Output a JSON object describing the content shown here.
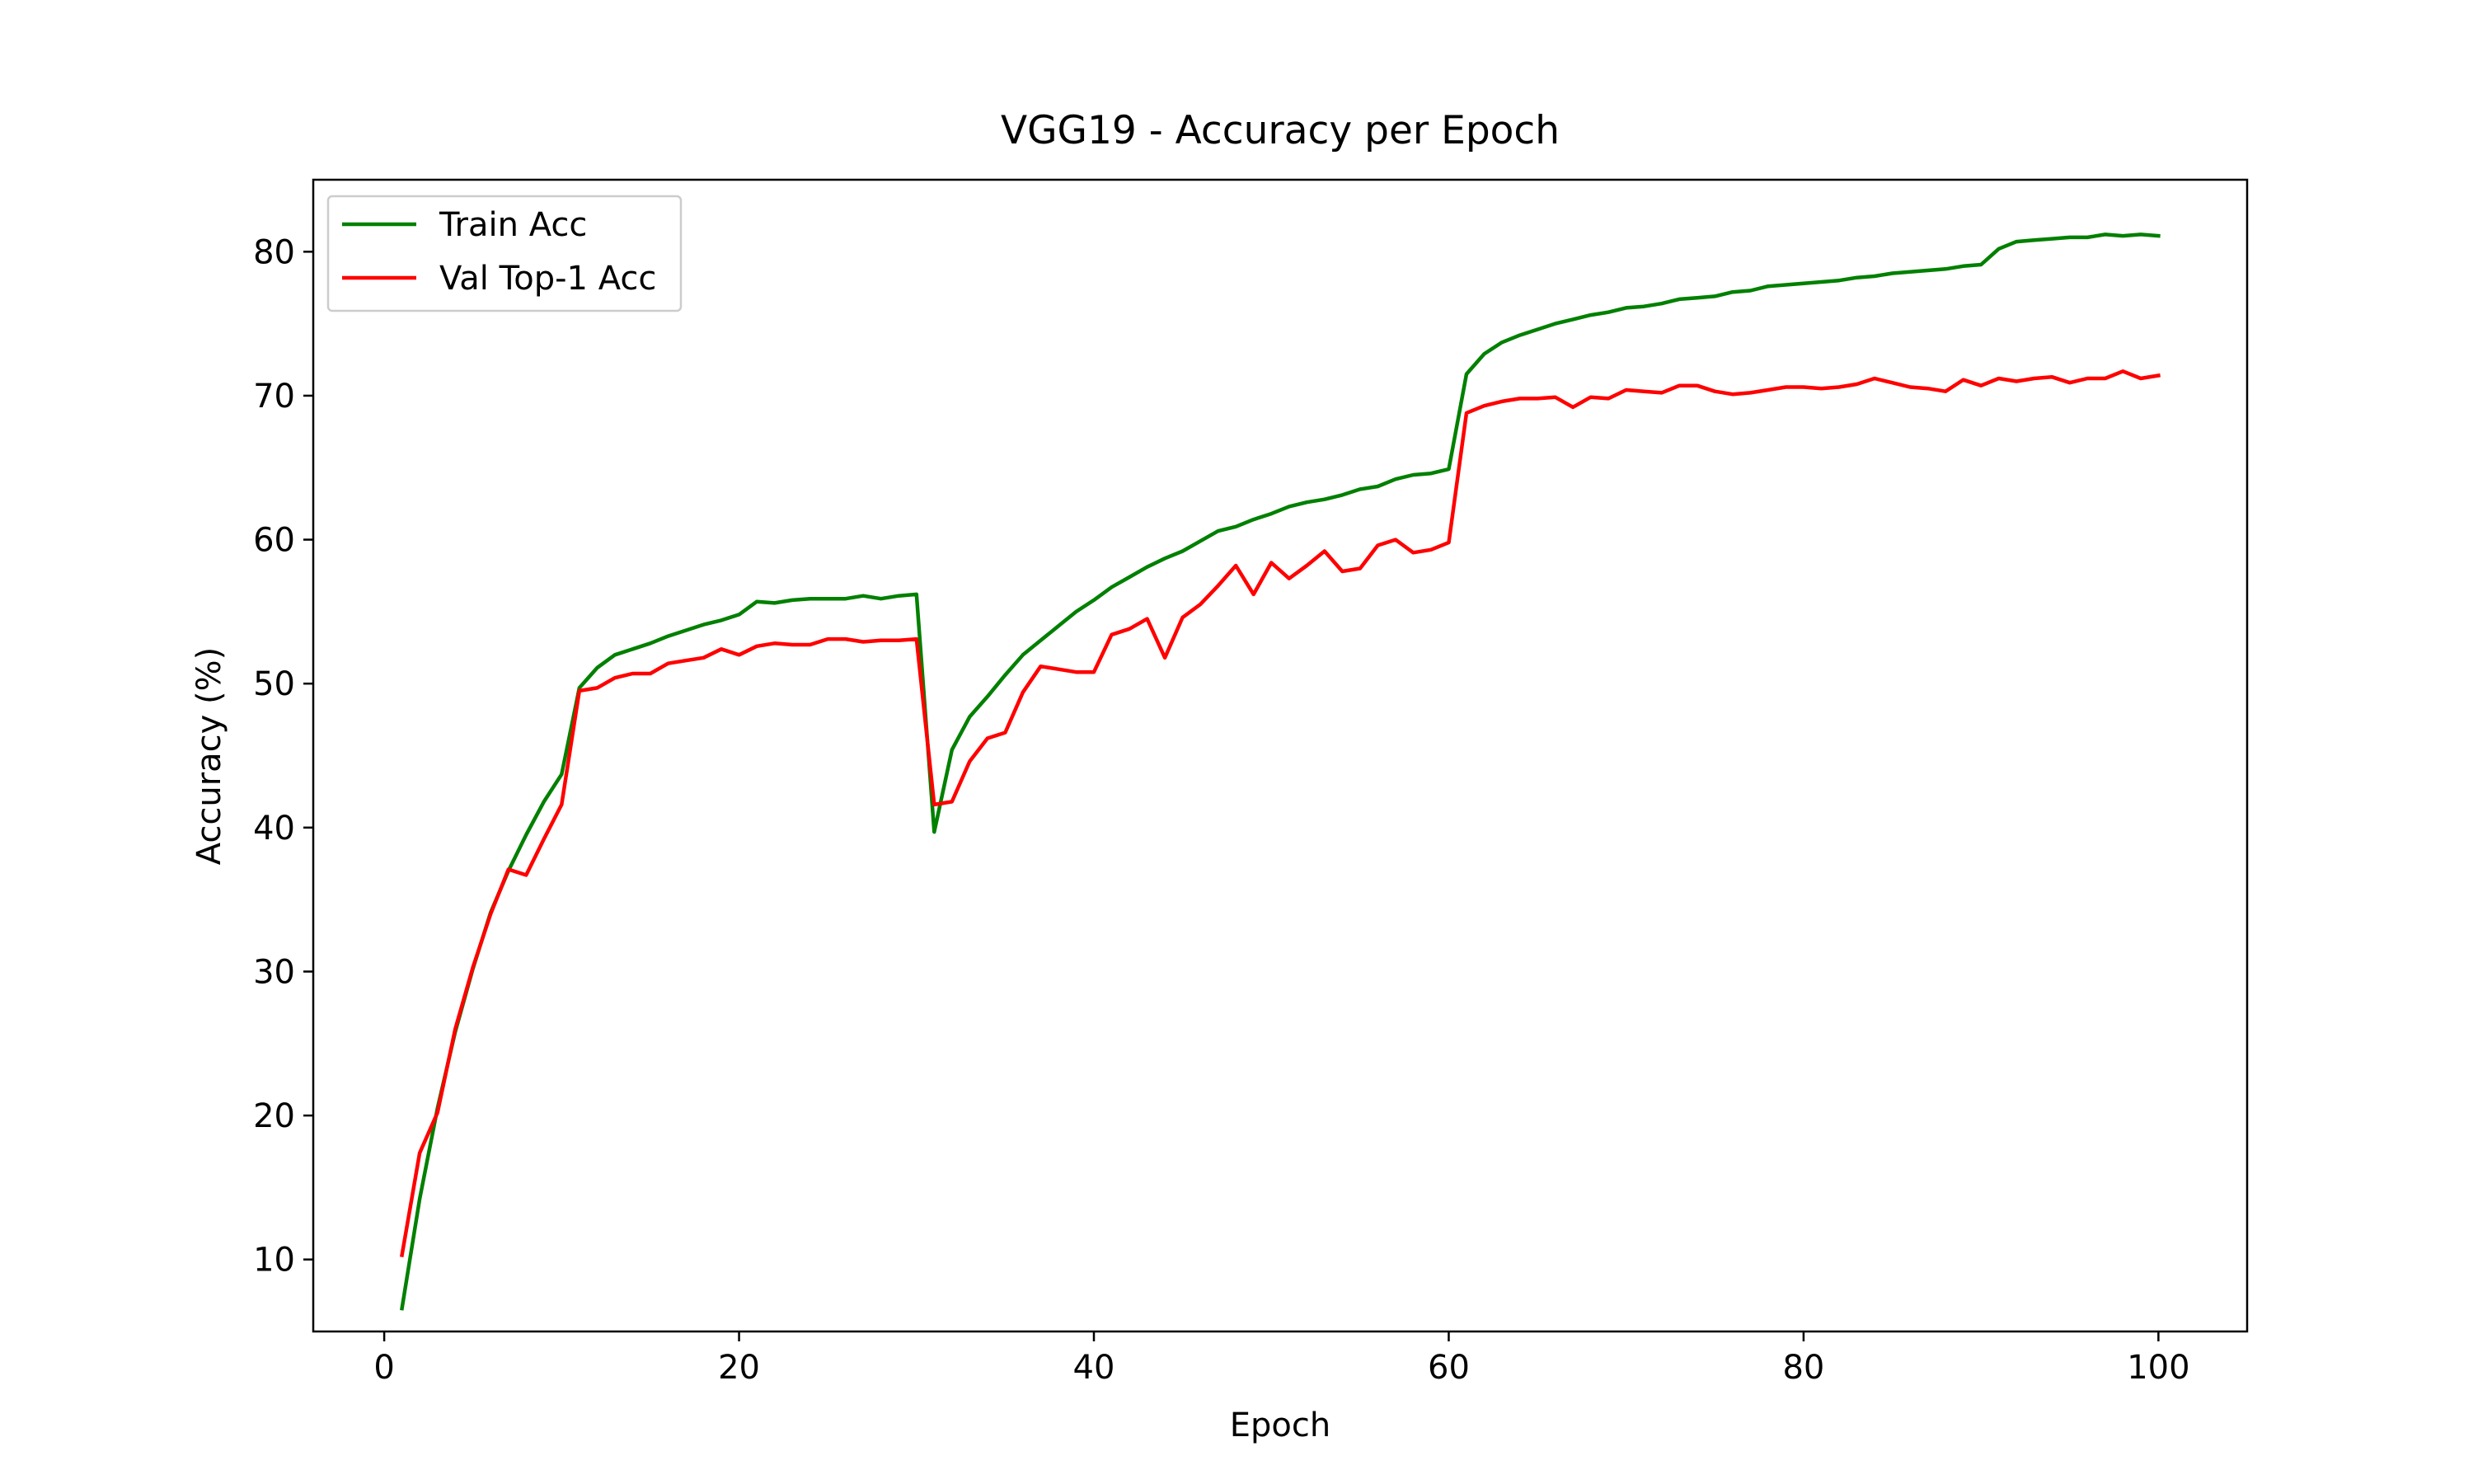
{
  "chart_data": {
    "type": "line",
    "title": "VGG19 - Accuracy per Epoch",
    "xlabel": "Epoch",
    "ylabel": "Accuracy (%)",
    "xlim": [
      -4,
      105
    ],
    "ylim": [
      5,
      85
    ],
    "xticks": [
      0,
      20,
      40,
      60,
      80,
      100
    ],
    "yticks": [
      10,
      20,
      30,
      40,
      50,
      60,
      70,
      80
    ],
    "grid": false,
    "legend_position": "top-left",
    "x": [
      1,
      2,
      3,
      4,
      5,
      6,
      7,
      8,
      9,
      10,
      11,
      12,
      13,
      14,
      15,
      16,
      17,
      18,
      19,
      20,
      21,
      22,
      23,
      24,
      25,
      26,
      27,
      28,
      29,
      30,
      31,
      32,
      33,
      34,
      35,
      36,
      37,
      38,
      39,
      40,
      41,
      42,
      43,
      44,
      45,
      46,
      47,
      48,
      49,
      50,
      51,
      52,
      53,
      54,
      55,
      56,
      57,
      58,
      59,
      60,
      61,
      62,
      63,
      64,
      65,
      66,
      67,
      68,
      69,
      70,
      71,
      72,
      73,
      74,
      75,
      76,
      77,
      78,
      79,
      80,
      81,
      82,
      83,
      84,
      85,
      86,
      87,
      88,
      89,
      90,
      91,
      92,
      93,
      94,
      95,
      96,
      97,
      98,
      99,
      100
    ],
    "series": [
      {
        "name": "Train Acc",
        "color": "#008000",
        "values": [
          6.6,
          14.2,
          20.5,
          25.8,
          30.2,
          34.1,
          37.0,
          39.5,
          41.8,
          43.7,
          49.7,
          51.1,
          52.0,
          52.4,
          52.8,
          53.3,
          53.7,
          54.1,
          54.4,
          54.8,
          55.7,
          55.6,
          55.8,
          55.9,
          55.9,
          55.9,
          56.1,
          55.9,
          56.1,
          56.2,
          39.7,
          45.4,
          47.7,
          49.1,
          50.6,
          52.0,
          53.0,
          54.0,
          55.0,
          55.8,
          56.7,
          57.4,
          58.1,
          58.7,
          59.2,
          59.9,
          60.6,
          60.9,
          61.4,
          61.8,
          62.3,
          62.6,
          62.8,
          63.1,
          63.5,
          63.7,
          64.2,
          64.5,
          64.6,
          64.9,
          71.5,
          72.9,
          73.7,
          74.2,
          74.6,
          75.0,
          75.3,
          75.6,
          75.8,
          76.1,
          76.2,
          76.4,
          76.7,
          76.8,
          76.9,
          77.2,
          77.3,
          77.6,
          77.7,
          77.8,
          77.9,
          78.0,
          78.2,
          78.3,
          78.5,
          78.6,
          78.7,
          78.8,
          79.0,
          79.1,
          80.2,
          80.7,
          80.8,
          80.9,
          81.0,
          81.0,
          81.2,
          81.1,
          81.2,
          81.1
        ]
      },
      {
        "name": "Val Top-1 Acc",
        "color": "#ff0000",
        "values": [
          10.3,
          17.4,
          20.2,
          26.0,
          30.3,
          34.0,
          37.1,
          36.7,
          39.2,
          41.6,
          49.5,
          49.7,
          50.4,
          50.7,
          50.7,
          51.4,
          51.6,
          51.8,
          52.4,
          52.0,
          52.6,
          52.8,
          52.7,
          52.7,
          53.1,
          53.1,
          52.9,
          53.0,
          53.0,
          53.1,
          41.6,
          41.8,
          44.6,
          46.2,
          46.6,
          49.4,
          51.2,
          51.0,
          50.8,
          50.8,
          53.4,
          53.8,
          54.5,
          51.8,
          54.6,
          55.5,
          56.8,
          58.2,
          56.2,
          58.4,
          57.3,
          58.2,
          59.2,
          57.8,
          58.0,
          59.6,
          60.0,
          59.1,
          59.3,
          59.8,
          68.8,
          69.3,
          69.6,
          69.8,
          69.8,
          69.9,
          69.2,
          69.9,
          69.8,
          70.4,
          70.3,
          70.2,
          70.7,
          70.7,
          70.3,
          70.1,
          70.2,
          70.4,
          70.6,
          70.6,
          70.5,
          70.6,
          70.8,
          71.2,
          70.9,
          70.6,
          70.5,
          70.3,
          71.1,
          70.7,
          71.2,
          71.0,
          71.2,
          71.3,
          70.9,
          71.2,
          71.2,
          71.7,
          71.2,
          71.4
        ]
      }
    ]
  }
}
